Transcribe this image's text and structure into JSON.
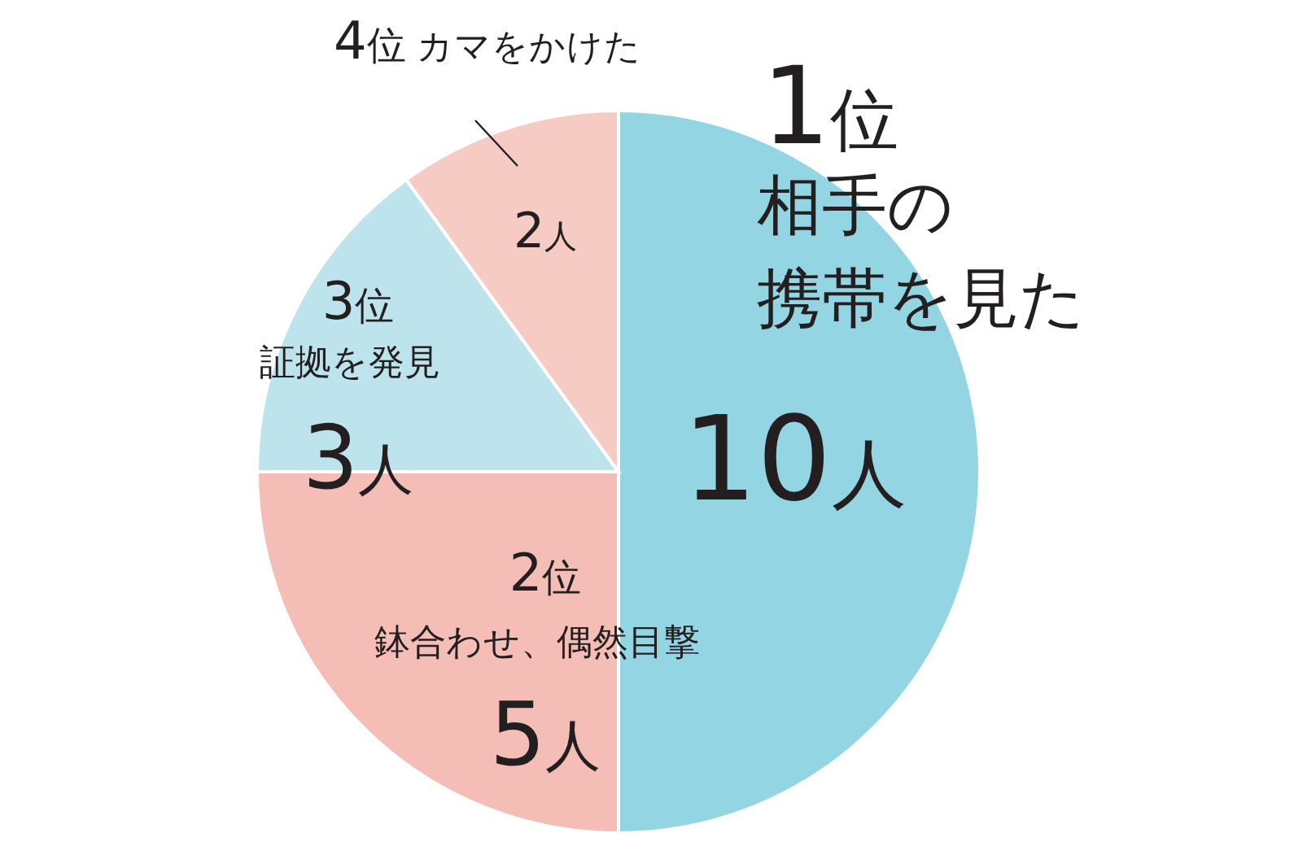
{
  "chart_data": {
    "type": "pie",
    "categories": [
      "相手の携帯を見た",
      "鉢合わせ、偶然目撃",
      "証拠を発見",
      "カマをかけた"
    ],
    "values": [
      10,
      5,
      3,
      2
    ],
    "colors": [
      "#93d5e2",
      "#f4bdb5",
      "#bde4ed",
      "#f6cbc4"
    ],
    "value_labels": [
      "10人",
      "5人",
      "3人",
      "2人"
    ],
    "annotations": [
      "1位",
      "2位",
      "3位",
      "4位"
    ]
  }
}
